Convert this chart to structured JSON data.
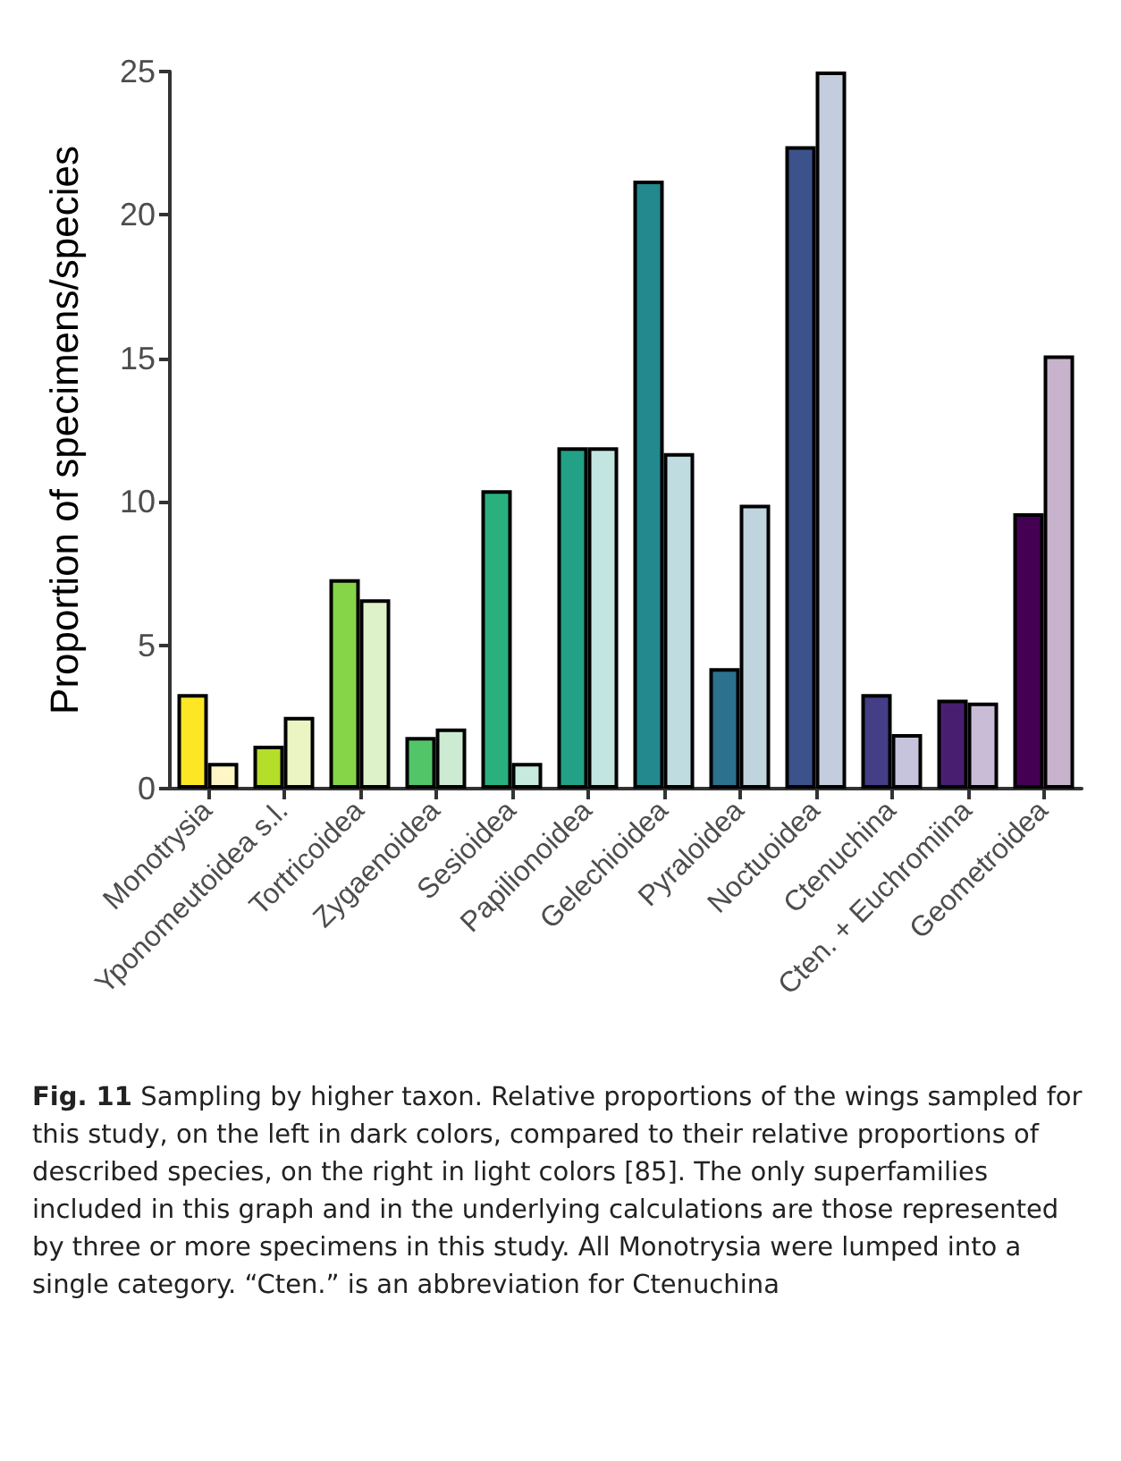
{
  "chart_data": {
    "type": "bar",
    "ylabel": "Proportion of specimens/species",
    "categories": [
      "Monotrysia",
      "Yponomeutoidea s.l.",
      "Tortricoidea",
      "Zygaenoidea",
      "Sesioidea",
      "Papilionoidea",
      "Gelechioidea",
      "Pyraloidea",
      "Noctuoidea",
      "Ctenuchina",
      "Cten. + Euchromiina",
      "Geometroidea"
    ],
    "series": [
      {
        "values": [
          3.3,
          1.5,
          7.3,
          1.8,
          10.4,
          11.9,
          21.2,
          4.2,
          22.4,
          3.3,
          3.1,
          9.6
        ],
        "colors": [
          "#fde725",
          "#b5de2b",
          "#86d549",
          "#52c569",
          "#2ab07f",
          "#22a187",
          "#23898e",
          "#2c718e",
          "#3b528b",
          "#433e85",
          "#481f70",
          "#440154"
        ]
      },
      {
        "values": [
          0.9,
          2.5,
          6.6,
          2.1,
          0.9,
          11.9,
          11.7,
          9.9,
          25.0,
          1.9,
          3.0,
          15.1
        ],
        "colors": [
          "#fef7c5",
          "#ebf5c3",
          "#def2c9",
          "#cdebd3",
          "#c6ebde",
          "#c2e5e0",
          "#bfdde0",
          "#c0d4dd",
          "#c4cddd",
          "#c6c3dc",
          "#c9bcd7",
          "#c8b3cc"
        ]
      }
    ],
    "ylim": [
      0,
      25
    ],
    "yticks": [
      0,
      5,
      10,
      15,
      20,
      25
    ],
    "grid": false,
    "annotations": [
      "Fig. 11",
      "Sampling by higher taxon. Relative proportions of the wings sampled for this study, on the left in dark colors, compared to their relative proportions of described species, on the right in light colors [85]. The only superfamilies included in this graph and in the underlying calculations are those represented by three or more specimens in this study. All Monotrysia were lumped into a single category. “Cten.” is an abbreviation for Ctenuchina"
    ]
  }
}
